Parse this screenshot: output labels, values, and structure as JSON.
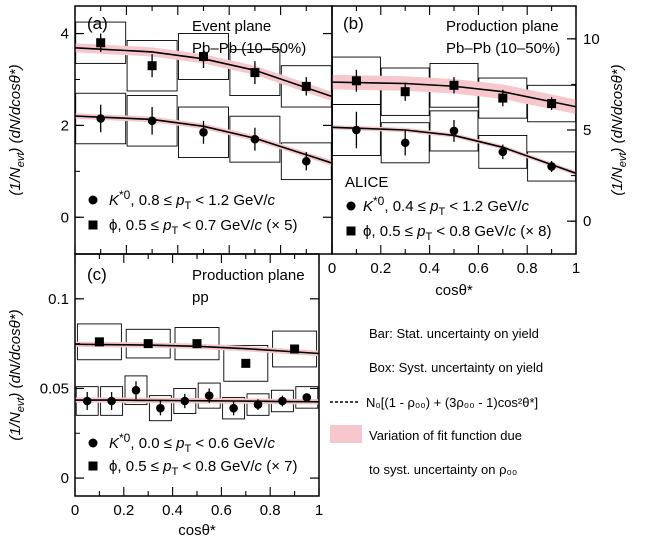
{
  "chart_data": [
    {
      "type": "scatter",
      "panel": "(a)",
      "plane": "Event plane",
      "system": "Pb–Pb (10–50%)",
      "ylabel_main": "(1/N",
      "ylabel_sub": "evt",
      "ylabel_tail": ") (dN/dcosθ*)",
      "xlim": [
        0,
        1
      ],
      "ylim": [
        -0.8,
        4.6
      ],
      "yticks": [
        0,
        2,
        4
      ],
      "series": [
        {
          "name": "K*0, 0.8 ≤ pT < 1.2 GeV/c",
          "marker": "circle",
          "x": [
            0.1,
            0.3,
            0.5,
            0.7,
            0.9
          ],
          "y": [
            2.15,
            2.1,
            1.85,
            1.7,
            1.22
          ],
          "stat": [
            0.3,
            0.3,
            0.25,
            0.25,
            0.2
          ],
          "syst": [
            0.55,
            0.55,
            0.55,
            0.5,
            0.4
          ],
          "fit": [
            2.18,
            2.13,
            1.98,
            1.72,
            1.36
          ],
          "band": 0.06
        },
        {
          "name": "φ, 0.5 ≤ pT < 0.7 GeV/c (× 5)",
          "marker": "square",
          "x": [
            0.1,
            0.3,
            0.5,
            0.7,
            0.9
          ],
          "y": [
            3.8,
            3.3,
            3.5,
            3.15,
            2.85
          ],
          "stat": [
            0.2,
            0.25,
            0.25,
            0.25,
            0.2
          ],
          "syst": [
            0.45,
            0.55,
            0.5,
            0.5,
            0.45
          ],
          "fit": [
            3.66,
            3.6,
            3.45,
            3.2,
            2.82
          ],
          "band": 0.1
        }
      ]
    },
    {
      "type": "scatter",
      "panel": "(b)",
      "plane": "Production plane",
      "system": "Pb–Pb (10–50%)",
      "experiment": "ALICE",
      "xlabel": "cosθ*",
      "xticks": [
        "0",
        "0.2",
        "0.4",
        "0.6",
        "0.8",
        "1"
      ],
      "ylabel_main": "(1/N",
      "ylabel_sub": "evt",
      "ylabel_tail": ") (dN/dcosθ*)",
      "xlim": [
        0,
        1
      ],
      "ylim": [
        -1.8,
        11.8
      ],
      "yticks": [
        0,
        5,
        10
      ],
      "series": [
        {
          "name": "K*0, 0.4 ≤ pT < 1.2 GeV/c",
          "marker": "circle",
          "x": [
            0.1,
            0.3,
            0.5,
            0.7,
            0.9
          ],
          "y": [
            5.0,
            4.3,
            4.95,
            3.8,
            3.0
          ],
          "stat": [
            1.0,
            0.7,
            0.6,
            0.4,
            0.3
          ],
          "syst": [
            1.4,
            1.1,
            1.1,
            0.9,
            0.8
          ],
          "fit": [
            5.1,
            5.0,
            4.7,
            4.05,
            3.1
          ],
          "band": 0.12
        },
        {
          "name": "φ, 0.5 ≤ pT < 0.8 GeV/c (× 8)",
          "marker": "square",
          "x": [
            0.1,
            0.3,
            0.5,
            0.7,
            0.9
          ],
          "y": [
            7.7,
            7.1,
            7.45,
            6.75,
            6.45
          ],
          "stat": [
            0.6,
            0.5,
            0.45,
            0.45,
            0.35
          ],
          "syst": [
            1.3,
            1.3,
            1.2,
            1.1,
            1.0
          ],
          "fit": [
            7.6,
            7.55,
            7.4,
            7.1,
            6.55
          ],
          "band": 0.4
        }
      ]
    },
    {
      "type": "scatter",
      "panel": "(c)",
      "plane": "Production plane",
      "system": "pp",
      "xlabel": "cosθ*",
      "xticks": [
        "0",
        "0.2",
        "0.4",
        "0.6",
        "0.8",
        "1"
      ],
      "ylabel_main": "(1/N",
      "ylabel_sub": "evt",
      "ylabel_tail": ") (dN/dcosθ*)",
      "xlim": [
        0,
        1
      ],
      "ylim": [
        -0.01,
        0.125
      ],
      "yticks": [
        0,
        0.05,
        0.1
      ],
      "ytick_labels": [
        "0",
        "0.05",
        "0.1"
      ],
      "series": [
        {
          "name": "K*0, 0.0 ≤ pT < 0.6 GeV/c",
          "marker": "circle",
          "x": [
            0.05,
            0.15,
            0.25,
            0.35,
            0.45,
            0.55,
            0.65,
            0.75,
            0.85,
            0.95
          ],
          "y": [
            0.043,
            0.043,
            0.049,
            0.039,
            0.043,
            0.046,
            0.039,
            0.041,
            0.043,
            0.045
          ],
          "stat": [
            0.005,
            0.005,
            0.005,
            0.004,
            0.004,
            0.004,
            0.004,
            0.003,
            0.003,
            0.002
          ],
          "syst": [
            0.008,
            0.008,
            0.008,
            0.007,
            0.007,
            0.007,
            0.006,
            0.006,
            0.006,
            0.006
          ],
          "fit": [
            0.0435,
            0.0435,
            0.0434,
            0.0433,
            0.0432,
            0.0431,
            0.043,
            0.0429,
            0.0427,
            0.0426
          ],
          "band": 0.0015
        },
        {
          "name": "φ, 0.5 ≤ pT < 0.8 GeV/c (× 7)",
          "marker": "square",
          "x": [
            0.1,
            0.3,
            0.5,
            0.7,
            0.9
          ],
          "y": [
            0.076,
            0.075,
            0.075,
            0.064,
            0.072
          ],
          "stat": [
            0.002,
            0.002,
            0.002,
            0.002,
            0.002
          ],
          "syst": [
            0.01,
            0.008,
            0.009,
            0.01,
            0.01
          ],
          "fit": [
            0.0745,
            0.0742,
            0.0735,
            0.0722,
            0.0704
          ],
          "band": 0.0015
        }
      ]
    }
  ],
  "legend_notes": {
    "bar": "Bar: Stat. uncertainty on yield",
    "box": "Box: Syst. uncertainty on yield",
    "fit": "N₀[(1 - ρ₀₀) + (3ρ₀₀ - 1)cos²θ*]",
    "band_line1": "Variation of fit function due",
    "band_line2": "to syst. uncertainty on ρ₀₀"
  },
  "colors": {
    "band": "#f6c7cc",
    "line": "#000000"
  }
}
